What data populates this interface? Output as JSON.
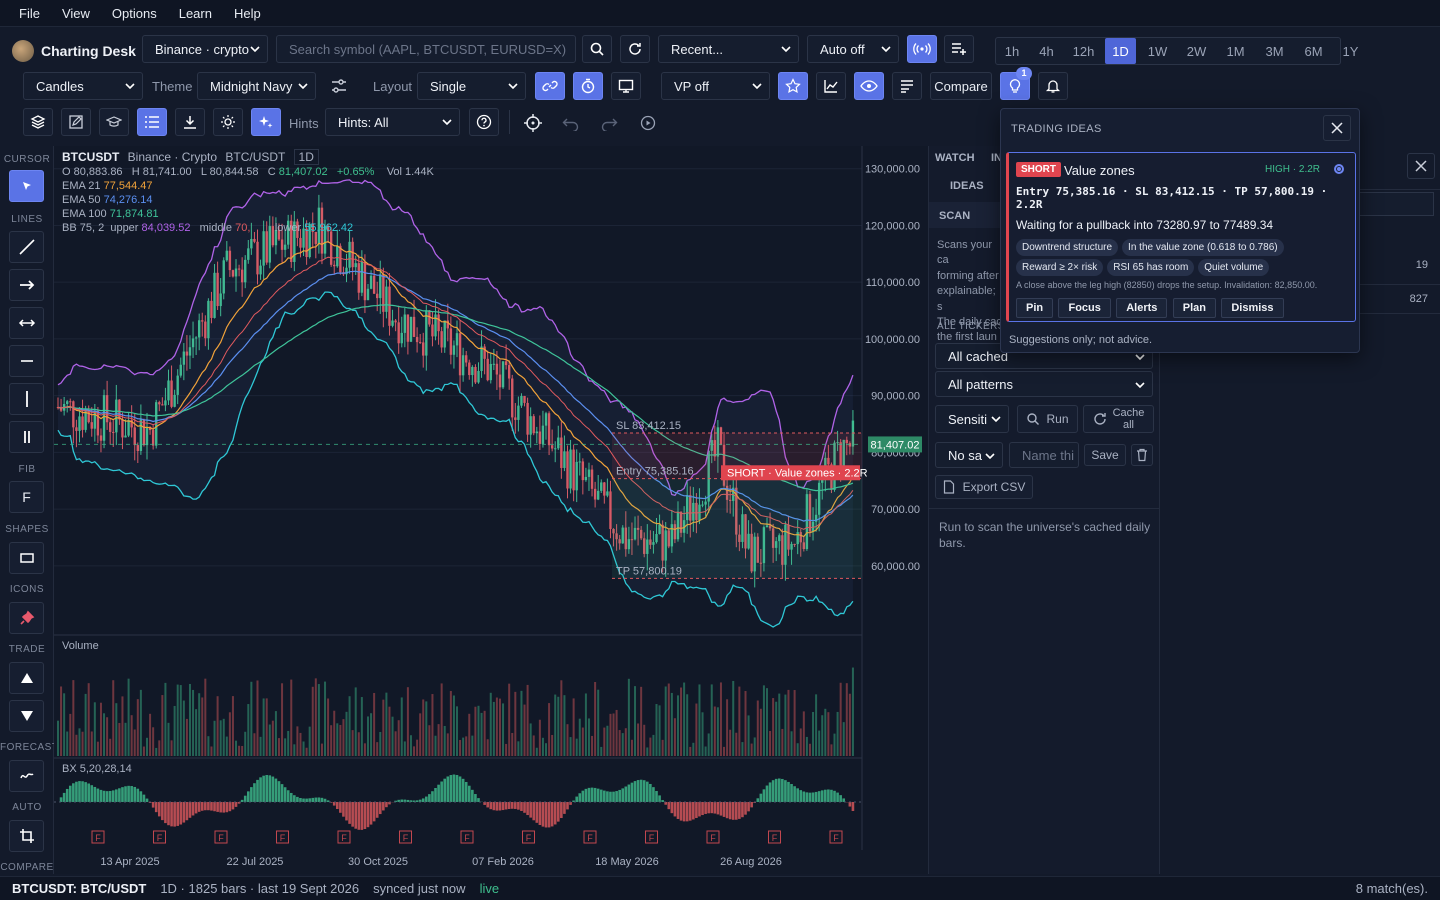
{
  "menu": [
    "File",
    "View",
    "Options",
    "Learn",
    "Help"
  ],
  "app": {
    "title": "Charting Desk"
  },
  "toolbar1": {
    "exchange": "Binance · crypto",
    "search_placeholder": "Search symbol (AAPL, BTCUSDT, EURUSD=X)",
    "recent": "Recent...",
    "auto": "Auto off",
    "timeframes": [
      "1h",
      "4h",
      "12h",
      "1D",
      "1W",
      "2W",
      "1M",
      "3M",
      "6M",
      "1Y"
    ],
    "active_timeframe": "1D"
  },
  "toolbar2": {
    "style": "Candles",
    "theme_label": "Theme",
    "theme": "Midnight Navy",
    "layout_label": "Layout",
    "layout": "Single",
    "vp": "VP off",
    "compare": "Compare",
    "ideas_badge": "1"
  },
  "toolbar3": {
    "hints_label": "Hints",
    "hints": "Hints: All"
  },
  "left_sections": [
    "CURSOR",
    "LINES",
    "FIB",
    "SHAPES",
    "ICONS",
    "TRADE",
    "FORECAST",
    "AUTO",
    "COMPARE"
  ],
  "fib_glyph": "F",
  "chart": {
    "symbol": "BTCUSDT",
    "venue": "Binance · Crypto",
    "pair": "BTC/USDT",
    "tf": "1D",
    "ohlc": {
      "o": "O 80,883.86",
      "h": "H 81,741.00",
      "l": "L 80,844.58",
      "c_label": "C",
      "c": "81,407.02",
      "chg": "+0.65%",
      "vol": "Vol 1.44K"
    },
    "ema21": {
      "label": "EMA 21",
      "value": "77,544.47"
    },
    "ema50": {
      "label": "EMA 50",
      "value": "74,276.14"
    },
    "ema100": {
      "label": "EMA 100",
      "value": "71,874.81"
    },
    "bb": {
      "label": "BB 75, 2",
      "upper_label": "upper",
      "upper": "84,039.52",
      "middle_label": "middle",
      "middle": "70,",
      "lower_label": "lower",
      "lower": "55,962.42"
    },
    "price_ticks": [
      "130,000.00",
      "120,000.00",
      "110,000.00",
      "100,000.00",
      "90,000.00",
      "80,000.00",
      "70,000.00",
      "60,000.00"
    ],
    "last_price": "81,407.02",
    "sl_label": "SL 83,412.15",
    "entry_label": "Entry 75,385.16",
    "tp_label": "TP 57,800.19",
    "short_tag": "SHORT · Value zones · 2.2R",
    "volume_label": "Volume",
    "bx_label": "BX 5,20,28,14",
    "x_ticks": [
      "13 Apr 2025",
      "22 Jul 2025",
      "30 Oct 2025",
      "07 Feb 2026",
      "18 May 2026",
      "26 Aug 2026"
    ],
    "fib_marker": "F"
  },
  "colors": {
    "ema21": "#f2a33a",
    "ema50": "#5b8ff0",
    "ema100": "#3fc49a",
    "bb": "#b063e8",
    "bb_lower": "#2fc8d6",
    "up": "#3fbf8e",
    "down": "#e05a5e",
    "accent": "#5a73e6",
    "short": "#e0454f"
  },
  "side": {
    "tabs": [
      "WATCH",
      "IN"
    ],
    "ideas_tab": "IDEAS",
    "scan_tab": "SCAN",
    "scan_text": [
      "Scans your ca",
      "forming after",
      "explainable; s",
      "The daily cac",
      "the first laun"
    ],
    "all_tickers": "ALL TICKERS",
    "universe": "All cached",
    "patterns": "All patterns",
    "sensitivity": "Sensiti",
    "run": "Run",
    "cache": "Cache all",
    "no_saved": "No sa",
    "name_placeholder": "Name thi",
    "save": "Save",
    "export": "Export CSV",
    "hint": "Run to scan the universe's cached daily bars."
  },
  "right": {
    "row1": "19",
    "row2": "827"
  },
  "popup": {
    "title": "TRADING IDEAS",
    "side": "SHORT",
    "name": "Value zones",
    "conf": "HIGH · 2.2R",
    "levels": "Entry 75,385.16 · SL 83,412.15 · TP 57,800.19 · 2.2R",
    "wait": "Waiting for a pullback into 73280.97 to 77489.34",
    "chips1": [
      "Downtrend structure",
      "In the value zone (0.618 to 0.786)"
    ],
    "chips2": [
      "Reward ≥ 2× risk",
      "RSI 65 has room",
      "Quiet volume"
    ],
    "invalid": "A close above the leg high (82850) drops the setup. Invalidation: 82,850.00.",
    "actions": [
      "Pin",
      "Focus",
      "Alerts",
      "Plan",
      "Dismiss"
    ],
    "footer": "Suggestions only; not advice."
  },
  "status": {
    "symbol": "BTCUSDT: BTC/USDT",
    "info": "1D · 1825 bars · last 19 Sept 2026",
    "sync": "synced just now",
    "live": "live",
    "matches": "8 match(es)."
  }
}
